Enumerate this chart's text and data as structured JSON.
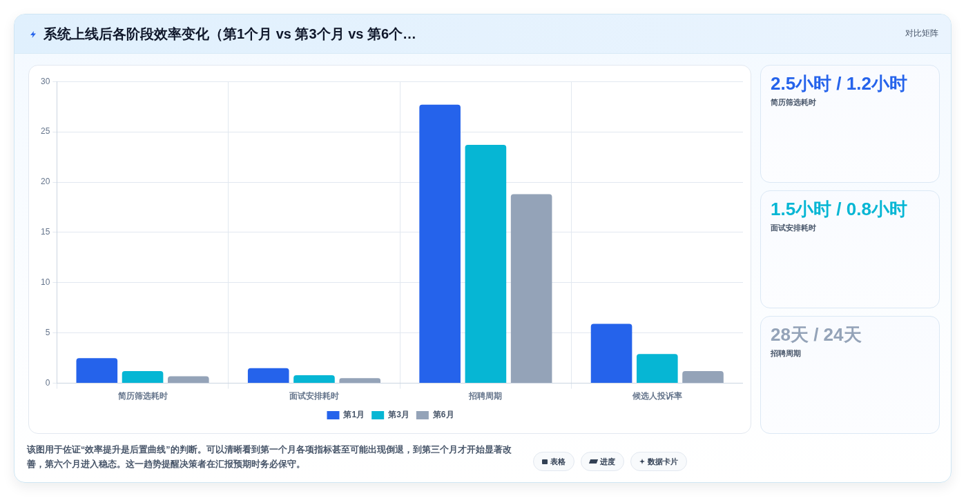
{
  "chart_data": [
    {
      "type": "bar",
      "title": "系统上线后各阶段效率变化（第1个月 vs 第3个月 vs 第6个…",
      "categories": [
        "简历筛选耗时",
        "面试安排耗时",
        "招聘周期",
        "候选人投诉率"
      ],
      "series": [
        {
          "name": "第1月",
          "color": "#2563eb",
          "values": [
            2.5,
            1.5,
            27.7,
            5.9
          ]
        },
        {
          "name": "第3月",
          "color": "#06b6d4",
          "values": [
            1.2,
            0.8,
            23.7,
            2.9
          ]
        },
        {
          "name": "第6月",
          "color": "#94a3b8",
          "values": [
            0.7,
            0.5,
            18.8,
            1.2
          ]
        }
      ],
      "ylim": [
        0,
        30
      ],
      "yticks": [
        0,
        5,
        10,
        15,
        20,
        25,
        30
      ],
      "grid": true,
      "legend": "bottom",
      "annotations": [
        "对比矩阵",
        "该图用于佐证“效率提升是后置曲线”的判断。可以清晰看到第一个月各项指标甚至可能出现倒退，到第三个月才开始显著改善，第六个月进入稳态。这一趋势提醒决策者在汇报预期时务必保守。",
        "表格",
        "进度",
        "数据卡片"
      ]
    },
    {
      "type": "other",
      "categories": [
        "简历筛选耗时",
        "面试安排耗时",
        "招聘周期"
      ],
      "value_labels": [
        "2.5小时 / 1.2小时",
        "1.5小时 / 0.8小时",
        "28天 / 24天"
      ]
    }
  ]
}
